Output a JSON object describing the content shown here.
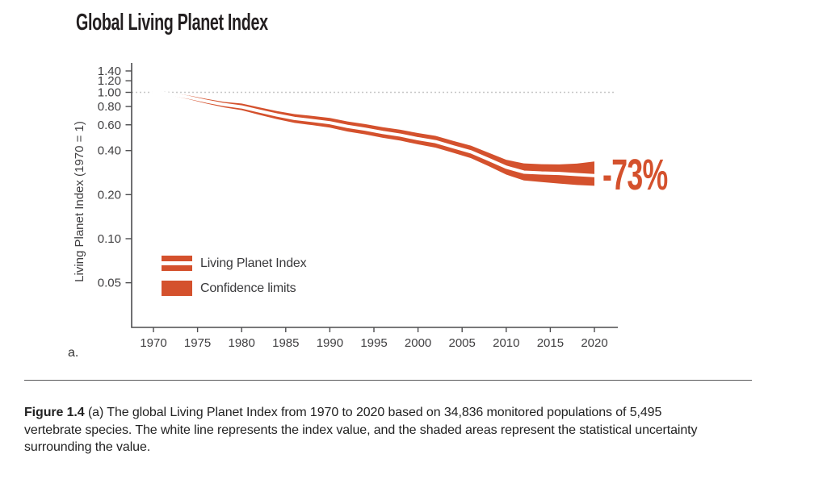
{
  "page": {
    "title": "Global Living Planet Index",
    "panel_label": "a."
  },
  "colors": {
    "accent": "#D4512D",
    "axis_line": "#4d4d4f",
    "tick_text": "#414042",
    "reference_dotted": "#c6c6c6",
    "index_line": "#ffffff"
  },
  "legend": {
    "items": [
      {
        "swatch": "band-with-white-line",
        "label": "Living Planet Index"
      },
      {
        "swatch": "solid-band",
        "label": "Confidence limits"
      }
    ]
  },
  "decline_label": "-73%",
  "caption": {
    "figure_label": "Figure 1.4",
    "line1_rest": "(a) The global Living Planet Index from 1970 to 2020 based on 34,836 monitored populations of 5,495",
    "line2": "vertebrate species. The white line represents the index value, and the shaded areas represent the statistical uncertainty",
    "line3": "surrounding the value."
  },
  "chart_data": {
    "type": "area",
    "title": "Global Living Planet Index",
    "xlabel": "",
    "ylabel": "Living Planet Index (1970 = 1)",
    "yscale": "log",
    "grid": false,
    "reference_line": 1.0,
    "x_ticks": [
      1970,
      1975,
      1980,
      1985,
      1990,
      1995,
      2000,
      2005,
      2010,
      2015,
      2020
    ],
    "y_tick_labels": [
      "1.40",
      "1.20",
      "1.00",
      "0.80",
      "0.60",
      "0.40",
      "0.20",
      "0.10",
      "0.05"
    ],
    "xlim": [
      1967.5,
      2022.7
    ],
    "ylim": [
      0.04,
      1.55
    ],
    "annotation": "-73%",
    "series": {
      "years": [
        1970,
        1972,
        1974,
        1976,
        1978,
        1980,
        1982,
        1984,
        1986,
        1988,
        1990,
        1992,
        1994,
        1996,
        1998,
        2000,
        2002,
        2004,
        2006,
        2008,
        2010,
        2012,
        2014,
        2016,
        2018,
        2020
      ],
      "index": [
        1.0,
        0.97,
        0.925,
        0.87,
        0.825,
        0.795,
        0.745,
        0.7,
        0.663,
        0.642,
        0.62,
        0.585,
        0.56,
        0.532,
        0.51,
        0.482,
        0.46,
        0.424,
        0.392,
        0.348,
        0.308,
        0.285,
        0.281,
        0.279,
        0.274,
        0.27
      ],
      "ci_low": [
        1.0,
        0.95,
        0.898,
        0.838,
        0.79,
        0.755,
        0.702,
        0.656,
        0.618,
        0.597,
        0.574,
        0.54,
        0.516,
        0.489,
        0.468,
        0.441,
        0.419,
        0.386,
        0.355,
        0.313,
        0.274,
        0.25,
        0.244,
        0.238,
        0.233,
        0.23
      ],
      "ci_high": [
        1.0,
        0.99,
        0.952,
        0.902,
        0.86,
        0.838,
        0.79,
        0.745,
        0.71,
        0.69,
        0.668,
        0.632,
        0.607,
        0.578,
        0.555,
        0.527,
        0.504,
        0.466,
        0.432,
        0.387,
        0.346,
        0.327,
        0.323,
        0.322,
        0.326,
        0.337
      ]
    }
  }
}
